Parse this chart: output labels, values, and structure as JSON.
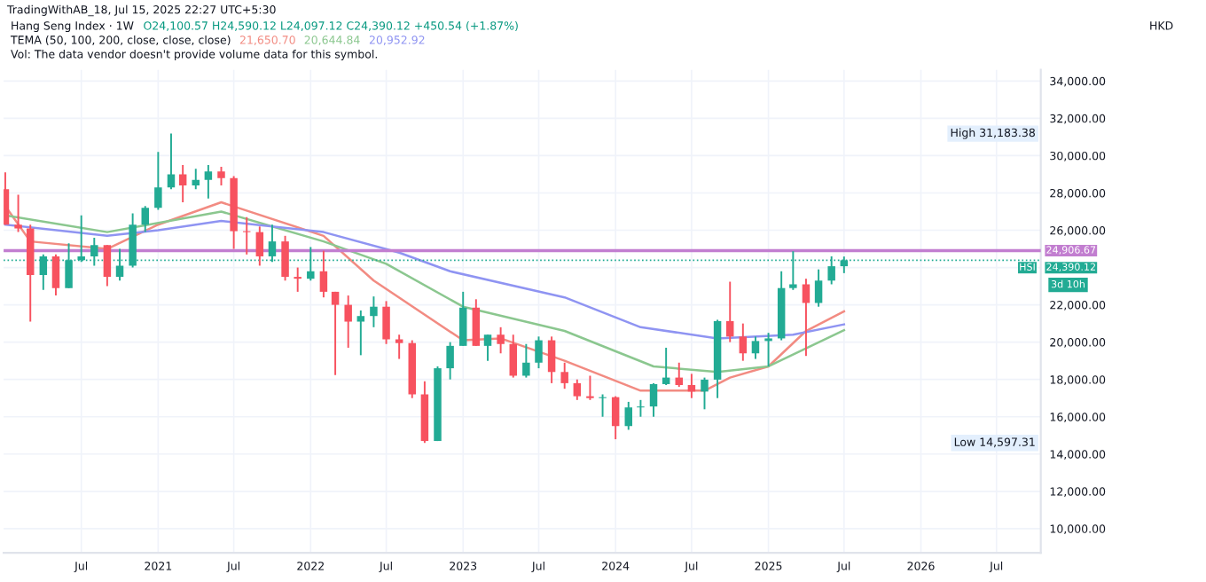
{
  "chart_data": {
    "type": "candlestick",
    "title": "Hang Seng Index · 1W",
    "annotations": [
      "TradingWithAB_18, Jul 15, 2025 22:27 UTC+5:30",
      "O24,100.57 H24,590.12 L24,097.12 C24,390.12 +450.54 (+1.87%)",
      "TEMA (50, 100, 200, close, close, close)",
      "21,650.70",
      "20,644.84",
      "20,952.92",
      "Vol: The data vendor doesn't provide volume data for this symbol.",
      "HKD",
      "HSI",
      "3d 10h",
      "High 31,183.38",
      "Low 14,597.31"
    ],
    "x": [
      "2020-01",
      "2020-02",
      "2020-03",
      "2020-04",
      "2020-05",
      "2020-06",
      "2020-07",
      "2020-08",
      "2020-09",
      "2020-10",
      "2020-11",
      "2020-12",
      "2021-01",
      "2021-02",
      "2021-03",
      "2021-04",
      "2021-05",
      "2021-06",
      "2021-07",
      "2021-08",
      "2021-09",
      "2021-10",
      "2021-11",
      "2021-12",
      "2022-01",
      "2022-02",
      "2022-03",
      "2022-04",
      "2022-05",
      "2022-06",
      "2022-07",
      "2022-08",
      "2022-09",
      "2022-10",
      "2022-11",
      "2022-12",
      "2023-01",
      "2023-02",
      "2023-03",
      "2023-04",
      "2023-05",
      "2023-06",
      "2023-07",
      "2023-08",
      "2023-09",
      "2023-10",
      "2023-11",
      "2023-12",
      "2024-01",
      "2024-02",
      "2024-03",
      "2024-04",
      "2024-05",
      "2024-06",
      "2024-07",
      "2024-08",
      "2024-09",
      "2024-10",
      "2024-11",
      "2024-12",
      "2025-01",
      "2025-02",
      "2025-03",
      "2025-04",
      "2025-05",
      "2025-06",
      "2025-07"
    ],
    "ohlc": [
      [
        28200,
        29100,
        26300,
        26300
      ],
      [
        26300,
        27900,
        25900,
        26100
      ],
      [
        26100,
        26300,
        21100,
        23600
      ],
      [
        23600,
        24700,
        22800,
        24600
      ],
      [
        24600,
        24700,
        22500,
        22900
      ],
      [
        22900,
        25300,
        22900,
        24400
      ],
      [
        24400,
        26800,
        24300,
        24600
      ],
      [
        24600,
        25600,
        24100,
        25200
      ],
      [
        25200,
        25200,
        23000,
        23500
      ],
      [
        23500,
        25000,
        23300,
        24100
      ],
      [
        24100,
        26900,
        24000,
        26300
      ],
      [
        26300,
        27300,
        25900,
        27200
      ],
      [
        27200,
        30200,
        27100,
        28300
      ],
      [
        28300,
        31183,
        28200,
        29000
      ],
      [
        29000,
        29500,
        27500,
        28400
      ],
      [
        28400,
        29300,
        28200,
        28700
      ],
      [
        28700,
        29500,
        27700,
        29150
      ],
      [
        29150,
        29400,
        28400,
        28800
      ],
      [
        28800,
        28900,
        25000,
        25950
      ],
      [
        25950,
        26700,
        24700,
        25900
      ],
      [
        25900,
        26200,
        24100,
        24600
      ],
      [
        24600,
        26300,
        24300,
        25400
      ],
      [
        25400,
        25700,
        23300,
        23500
      ],
      [
        23500,
        24000,
        22700,
        23400
      ],
      [
        23400,
        25100,
        23300,
        23800
      ],
      [
        23800,
        24900,
        22400,
        22700
      ],
      [
        22700,
        22700,
        18235,
        22000
      ],
      [
        22000,
        22500,
        19700,
        21100
      ],
      [
        21100,
        21700,
        19300,
        21400
      ],
      [
        21400,
        22450,
        20800,
        21900
      ],
      [
        21900,
        22200,
        19900,
        20150
      ],
      [
        20150,
        20400,
        19100,
        19950
      ],
      [
        19950,
        20100,
        17000,
        17200
      ],
      [
        17200,
        17900,
        14597,
        14700
      ],
      [
        14700,
        18700,
        14700,
        18600
      ],
      [
        18600,
        20000,
        18000,
        19800
      ],
      [
        19800,
        22700,
        19800,
        21850
      ],
      [
        21850,
        22300,
        19800,
        19800
      ],
      [
        19800,
        20400,
        19000,
        20400
      ],
      [
        20400,
        20800,
        19400,
        19900
      ],
      [
        19900,
        20400,
        18100,
        18200
      ],
      [
        18200,
        19900,
        18100,
        18900
      ],
      [
        18900,
        20300,
        18600,
        20100
      ],
      [
        20100,
        20300,
        17800,
        18400
      ],
      [
        18400,
        18900,
        17500,
        17800
      ],
      [
        17800,
        18000,
        16900,
        17100
      ],
      [
        17100,
        18200,
        16900,
        17000
      ],
      [
        17000,
        17200,
        16000,
        17050
      ],
      [
        17050,
        17100,
        14794,
        15500
      ],
      [
        15500,
        16800,
        15300,
        16500
      ],
      [
        16500,
        16900,
        16000,
        16550
      ],
      [
        16550,
        17800,
        16000,
        17750
      ],
      [
        17750,
        19700,
        17700,
        18100
      ],
      [
        18100,
        18900,
        17600,
        17700
      ],
      [
        17700,
        18300,
        17000,
        17350
      ],
      [
        17350,
        18100,
        16400,
        17990
      ],
      [
        17990,
        21200,
        17000,
        21130
      ],
      [
        21130,
        23241,
        20000,
        20300
      ],
      [
        20300,
        21000,
        19000,
        19400
      ],
      [
        19400,
        20300,
        19100,
        20060
      ],
      [
        20060,
        20500,
        18700,
        20200
      ],
      [
        20200,
        23800,
        20100,
        22900
      ],
      [
        22900,
        24874,
        22800,
        23100
      ],
      [
        23100,
        23400,
        19260,
        22100
      ],
      [
        22100,
        23900,
        21900,
        23300
      ],
      [
        23300,
        24600,
        23100,
        24070
      ],
      [
        24070,
        24590,
        23700,
        24390
      ]
    ],
    "colors": [
      "#f7525f",
      "#f7525f",
      "#f7525f",
      "#22ab94",
      "#f7525f",
      "#22ab94",
      "#22ab94",
      "#22ab94",
      "#f7525f",
      "#22ab94",
      "#22ab94",
      "#22ab94",
      "#22ab94",
      "#22ab94",
      "#f7525f",
      "#22ab94",
      "#22ab94",
      "#f7525f",
      "#f7525f",
      "#f7525f",
      "#f7525f",
      "#22ab94",
      "#f7525f",
      "#f7525f",
      "#22ab94",
      "#f7525f",
      "#f7525f",
      "#f7525f",
      "#22ab94",
      "#22ab94",
      "#f7525f",
      "#f7525f",
      "#f7525f",
      "#f7525f",
      "#22ab94",
      "#22ab94",
      "#22ab94",
      "#f7525f",
      "#22ab94",
      "#f7525f",
      "#f7525f",
      "#22ab94",
      "#22ab94",
      "#f7525f",
      "#f7525f",
      "#f7525f",
      "#f7525f",
      "#22ab94",
      "#f7525f",
      "#22ab94",
      "#22ab94",
      "#22ab94",
      "#22ab94",
      "#f7525f",
      "#f7525f",
      "#22ab94",
      "#22ab94",
      "#f7525f",
      "#f7525f",
      "#22ab94",
      "#22ab94",
      "#22ab94",
      "#22ab94",
      "#f7525f",
      "#22ab94",
      "#22ab94",
      "#22ab94"
    ],
    "series": [
      {
        "type": "line",
        "color": "#f28b82",
        "x": [
          "2020-01",
          "2020-03",
          "2020-09",
          "2021-01",
          "2021-06",
          "2022-02",
          "2022-06",
          "2023-01",
          "2023-04",
          "2023-09",
          "2024-03",
          "2024-08",
          "2024-10",
          "2025-01",
          "2025-04",
          "2025-07"
        ],
        "values": [
          27300,
          25400,
          25000,
          26300,
          27500,
          25700,
          23300,
          20100,
          20200,
          19000,
          17400,
          17400,
          18100,
          18700,
          20600,
          21650.7
        ]
      },
      {
        "type": "line",
        "color": "#8bc78f",
        "x": [
          "2020-01",
          "2020-09",
          "2021-06",
          "2022-02",
          "2022-07",
          "2023-01",
          "2023-09",
          "2024-04",
          "2024-09",
          "2025-01",
          "2025-07"
        ],
        "values": [
          26800,
          25900,
          27000,
          25400,
          24200,
          21900,
          20600,
          18700,
          18400,
          18700,
          20644.84
        ]
      },
      {
        "type": "line",
        "color": "#8f94f2",
        "x": [
          "2020-01",
          "2020-09",
          "2021-01",
          "2021-06",
          "2022-02",
          "2022-08",
          "2022-12",
          "2023-09",
          "2024-03",
          "2024-09",
          "2025-03",
          "2025-07"
        ],
        "values": [
          26300,
          25700,
          26000,
          26500,
          25900,
          24800,
          23800,
          22400,
          20800,
          20200,
          20400,
          20952.92
        ]
      }
    ],
    "ref_lines": [
      {
        "axis": "y",
        "value": 24906.67,
        "label": "24,906.67",
        "color": "#c27ed0",
        "line_style": "solid"
      },
      {
        "axis": "y",
        "value": 24390.12,
        "label": "24,390.12",
        "color": "#22ab94",
        "line_style": "dotted"
      }
    ],
    "xlim": [
      "2019-12-28",
      "2026-10-15"
    ],
    "xticks": [
      {
        "value": "2020-07",
        "label": "Jul"
      },
      {
        "value": "2021",
        "label": "2021"
      },
      {
        "value": "2021-07",
        "label": "Jul"
      },
      {
        "value": "2022",
        "label": "2022"
      },
      {
        "value": "2022-07",
        "label": "Jul"
      },
      {
        "value": "2023",
        "label": "2023"
      },
      {
        "value": "2023-07",
        "label": "Jul"
      },
      {
        "value": "2024",
        "label": "2024"
      },
      {
        "value": "2024-07",
        "label": "Jul"
      },
      {
        "value": "2025",
        "label": "2025"
      },
      {
        "value": "2025-07",
        "label": "Jul"
      },
      {
        "value": "2026",
        "label": "2026"
      },
      {
        "value": "2026-07",
        "label": "Jul"
      }
    ],
    "ylim": [
      8700,
      34600
    ],
    "yticks": [
      {
        "value": 10000,
        "label": "10,000.00"
      },
      {
        "value": 12000,
        "label": "12,000.00"
      },
      {
        "value": 14000,
        "label": "14,000.00"
      },
      {
        "value": 16000,
        "label": "16,000.00"
      },
      {
        "value": 18000,
        "label": "18,000.00"
      },
      {
        "value": 20000,
        "label": "20,000.00"
      },
      {
        "value": 22000,
        "label": "22,000.00"
      },
      {
        "value": 24000,
        "label": null
      },
      {
        "value": 26000,
        "label": "26,000.00"
      },
      {
        "value": 28000,
        "label": "28,000.00"
      },
      {
        "value": 30000,
        "label": "30,000.00"
      },
      {
        "value": 32000,
        "label": "32,000.00"
      },
      {
        "value": 34000,
        "label": "34,000.00"
      }
    ],
    "grid": true
  }
}
